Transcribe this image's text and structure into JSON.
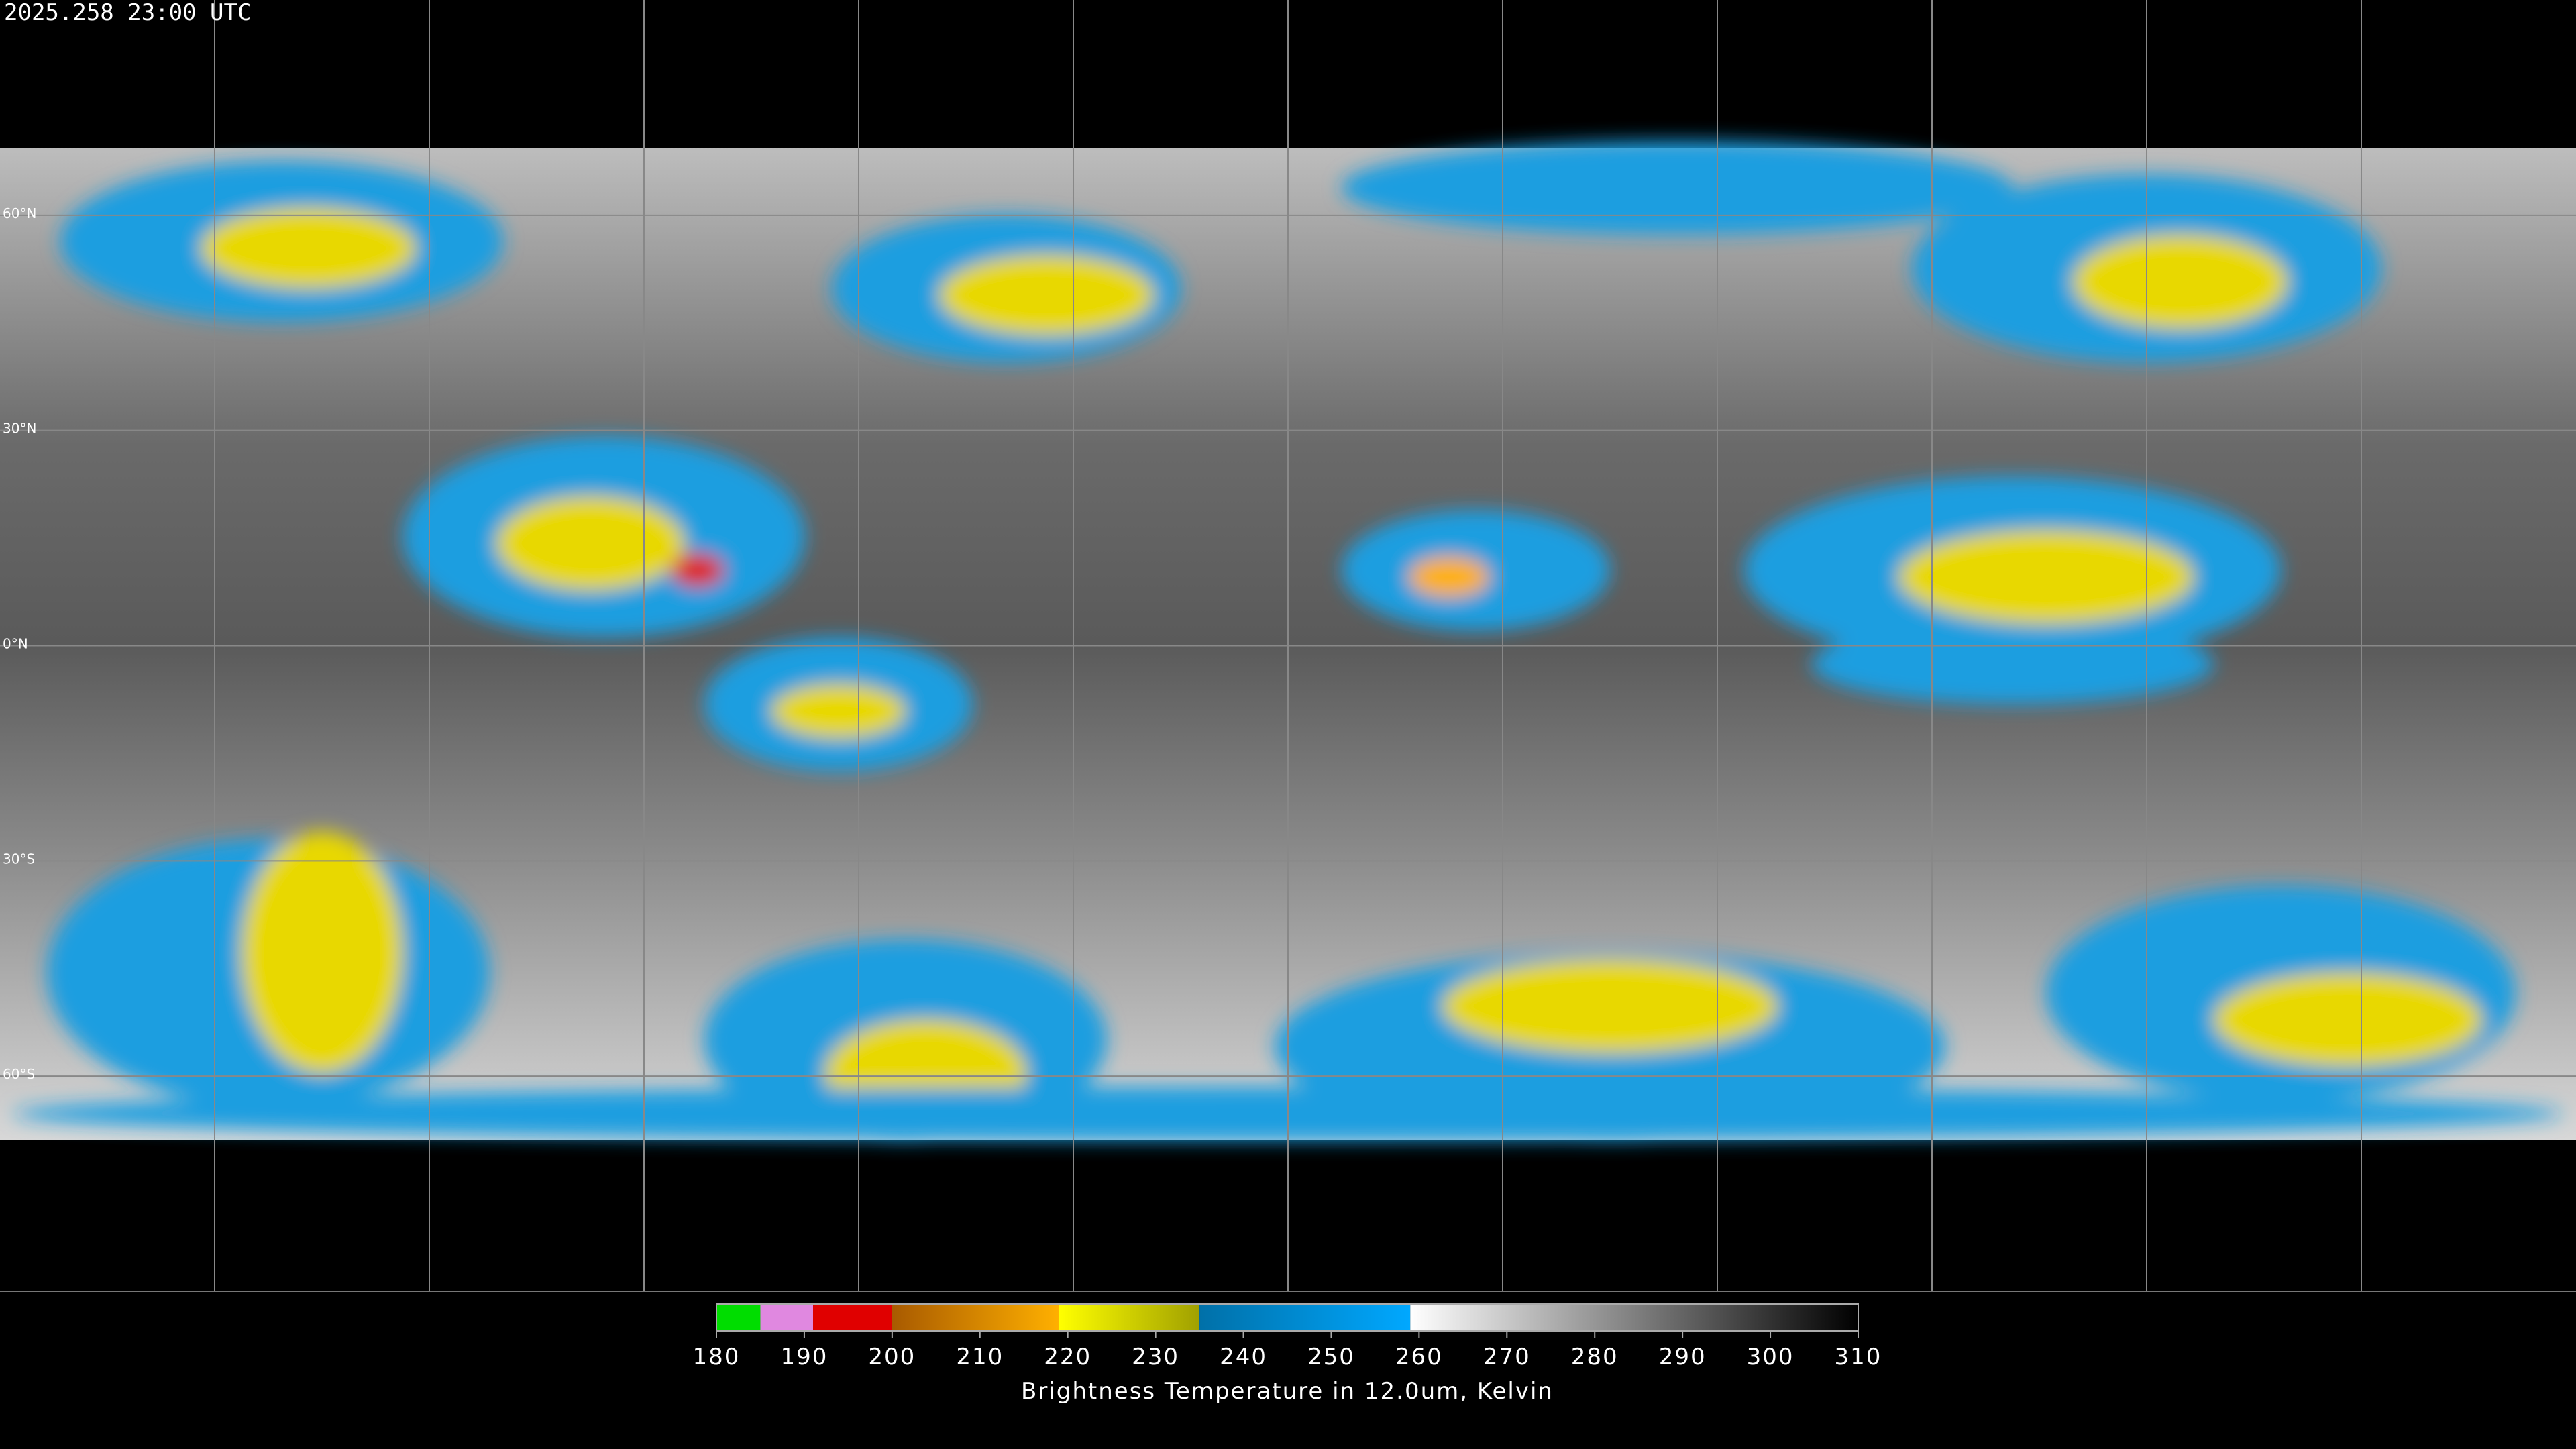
{
  "timestamp": "2025.258 23:00 UTC",
  "map": {
    "lat_lines": [
      {
        "value": 60,
        "label": "60°N"
      },
      {
        "value": 30,
        "label": "30°N"
      },
      {
        "value": 0,
        "label": "0°N"
      },
      {
        "value": -30,
        "label": "30°S"
      },
      {
        "value": -60,
        "label": "60°S"
      }
    ]
  },
  "colorbar": {
    "label": "Brightness Temperature in 12.0um, Kelvin",
    "range": [
      180,
      310
    ],
    "ticks": [
      180,
      190,
      200,
      210,
      220,
      230,
      240,
      250,
      260,
      270,
      280,
      290,
      300,
      310
    ],
    "segments": [
      {
        "from": 180,
        "to": 185,
        "colors": [
          "#00dd00",
          "#00dd00"
        ]
      },
      {
        "from": 185,
        "to": 191,
        "colors": [
          "#e088e0",
          "#e088e0"
        ]
      },
      {
        "from": 191,
        "to": 200,
        "colors": [
          "#e00000",
          "#e00000"
        ]
      },
      {
        "from": 200,
        "to": 219,
        "colors": [
          "#a85a00",
          "#ffb000"
        ]
      },
      {
        "from": 219,
        "to": 235,
        "colors": [
          "#ffff00",
          "#a0a000"
        ]
      },
      {
        "from": 235,
        "to": 259,
        "colors": [
          "#0070a8",
          "#00a8ff"
        ]
      },
      {
        "from": 259,
        "to": 310,
        "colors": [
          "#ffffff",
          "#000000"
        ]
      }
    ]
  }
}
